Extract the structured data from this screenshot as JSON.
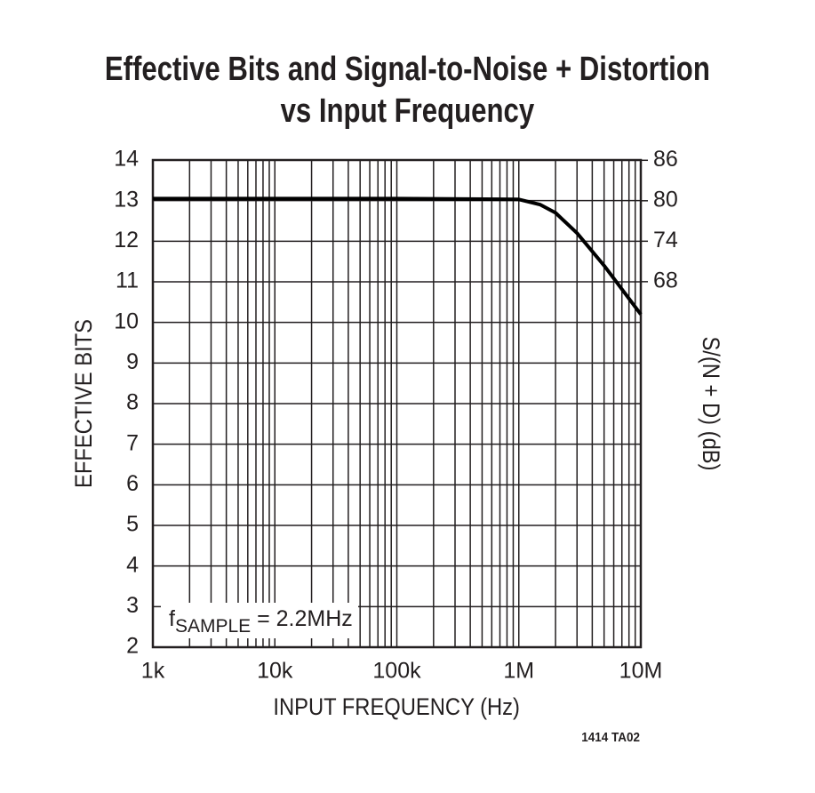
{
  "chart_data": {
    "type": "line",
    "title": [
      "Effective Bits and Signal-to-Noise + Distortion",
      "vs Input Frequency"
    ],
    "x_label": "INPUT FREQUENCY (Hz)",
    "y_label": "EFFECTIVE BITS",
    "y2_label": "S/(N + D) (dB)",
    "annotation": {
      "prefix": "f",
      "subscript": "SAMPLE",
      "suffix": " = 2.2MHz"
    },
    "footnote": "1414 TA02",
    "x_log": true,
    "grid": true,
    "xlim": [
      1000,
      10000000
    ],
    "xticks": [
      {
        "value": 1000,
        "label": "1k"
      },
      {
        "value": 10000,
        "label": "10k"
      },
      {
        "value": 100000,
        "label": "100k"
      },
      {
        "value": 1000000,
        "label": "1M"
      },
      {
        "value": 10000000,
        "label": "10M"
      }
    ],
    "xminorticks": [
      2000,
      3000,
      4000,
      5000,
      6000,
      7000,
      8000,
      9000,
      20000,
      30000,
      40000,
      50000,
      60000,
      70000,
      80000,
      90000,
      200000,
      300000,
      400000,
      500000,
      600000,
      700000,
      800000,
      900000,
      2000000,
      3000000,
      4000000,
      5000000,
      6000000,
      7000000,
      8000000,
      9000000
    ],
    "ylim": [
      2,
      14
    ],
    "yticks": [
      2,
      3,
      4,
      5,
      6,
      7,
      8,
      9,
      10,
      11,
      12,
      13,
      14
    ],
    "y2lim": [
      13.8,
      86.04
    ],
    "y2ticks": [
      68,
      74,
      80,
      86
    ],
    "series": [
      {
        "color": "#000000",
        "x": [
          1000,
          10000,
          100000,
          1000000,
          1500000,
          2000000,
          3000000,
          5000000,
          10000000
        ],
        "values": [
          13.05,
          13.05,
          13.05,
          13.03,
          12.9,
          12.7,
          12.2,
          11.4,
          10.2
        ]
      }
    ]
  }
}
